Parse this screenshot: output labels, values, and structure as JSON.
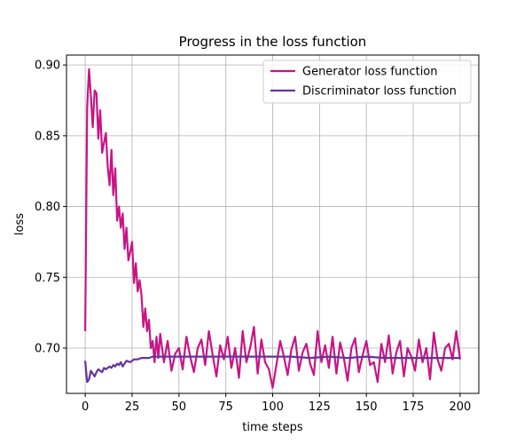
{
  "chart_data": {
    "type": "line",
    "title": "Progress in the loss function",
    "xlabel": "time steps",
    "ylabel": "loss",
    "xlim": [
      -10,
      210
    ],
    "ylim": [
      0.668,
      0.907
    ],
    "xticks": [
      0,
      25,
      50,
      75,
      100,
      125,
      150,
      175,
      200
    ],
    "yticks": [
      0.7,
      0.75,
      0.8,
      0.85,
      0.9
    ],
    "ytick_labels": [
      "0.70",
      "0.75",
      "0.80",
      "0.85",
      "0.90"
    ],
    "grid": true,
    "legend_position": "top-right",
    "series": [
      {
        "name": "Generator loss function",
        "color": "#c71585",
        "x": [
          0,
          1,
          2,
          3,
          4,
          5,
          6,
          7,
          8,
          9,
          10,
          11,
          12,
          13,
          14,
          15,
          16,
          17,
          18,
          19,
          20,
          21,
          22,
          23,
          24,
          25,
          26,
          27,
          28,
          29,
          30,
          31,
          32,
          33,
          34,
          35,
          36,
          37,
          38,
          39,
          40,
          42,
          44,
          46,
          48,
          50,
          52,
          54,
          56,
          58,
          60,
          62,
          64,
          66,
          68,
          70,
          72,
          74,
          76,
          78,
          80,
          82,
          84,
          86,
          88,
          90,
          92,
          94,
          96,
          98,
          100,
          102,
          104,
          106,
          108,
          110,
          112,
          114,
          116,
          118,
          120,
          122,
          124,
          126,
          128,
          130,
          132,
          134,
          136,
          138,
          140,
          142,
          144,
          146,
          148,
          150,
          152,
          154,
          156,
          158,
          160,
          162,
          164,
          166,
          168,
          170,
          172,
          174,
          176,
          178,
          180,
          182,
          184,
          186,
          188,
          190,
          192,
          194,
          196,
          198,
          200
        ],
        "values": [
          0.712,
          0.87,
          0.897,
          0.878,
          0.856,
          0.882,
          0.88,
          0.848,
          0.868,
          0.838,
          0.845,
          0.852,
          0.828,
          0.815,
          0.84,
          0.808,
          0.827,
          0.79,
          0.8,
          0.785,
          0.795,
          0.77,
          0.785,
          0.762,
          0.768,
          0.775,
          0.746,
          0.76,
          0.74,
          0.748,
          0.738,
          0.715,
          0.728,
          0.712,
          0.72,
          0.7,
          0.705,
          0.69,
          0.708,
          0.693,
          0.71,
          0.69,
          0.705,
          0.684,
          0.696,
          0.7,
          0.685,
          0.708,
          0.694,
          0.683,
          0.7,
          0.706,
          0.688,
          0.712,
          0.695,
          0.68,
          0.702,
          0.692,
          0.708,
          0.686,
          0.7,
          0.679,
          0.712,
          0.69,
          0.7,
          0.715,
          0.682,
          0.706,
          0.69,
          0.685,
          0.672,
          0.688,
          0.705,
          0.694,
          0.681,
          0.699,
          0.708,
          0.684,
          0.697,
          0.703,
          0.689,
          0.681,
          0.712,
          0.69,
          0.702,
          0.686,
          0.708,
          0.682,
          0.704,
          0.693,
          0.677,
          0.7,
          0.707,
          0.683,
          0.695,
          0.705,
          0.688,
          0.69,
          0.676,
          0.703,
          0.69,
          0.709,
          0.682,
          0.697,
          0.705,
          0.68,
          0.7,
          0.694,
          0.684,
          0.706,
          0.69,
          0.7,
          0.678,
          0.711,
          0.692,
          0.684,
          0.7,
          0.703,
          0.692,
          0.712,
          0.692
        ]
      },
      {
        "name": "Discriminator loss function",
        "color": "#663399",
        "x": [
          0,
          1,
          2,
          3,
          4,
          5,
          6,
          7,
          8,
          9,
          10,
          11,
          12,
          13,
          14,
          15,
          16,
          17,
          18,
          19,
          20,
          22,
          24,
          26,
          28,
          30,
          32,
          34,
          36,
          40,
          50,
          60,
          70,
          80,
          90,
          100,
          110,
          120,
          130,
          140,
          150,
          160,
          170,
          180,
          190,
          200
        ],
        "values": [
          0.691,
          0.676,
          0.678,
          0.684,
          0.682,
          0.68,
          0.683,
          0.685,
          0.684,
          0.683,
          0.686,
          0.685,
          0.686,
          0.687,
          0.686,
          0.688,
          0.687,
          0.689,
          0.688,
          0.69,
          0.687,
          0.691,
          0.69,
          0.692,
          0.692,
          0.693,
          0.693,
          0.693,
          0.694,
          0.694,
          0.694,
          0.694,
          0.694,
          0.694,
          0.694,
          0.694,
          0.694,
          0.693,
          0.694,
          0.693,
          0.694,
          0.693,
          0.693,
          0.693,
          0.693,
          0.693
        ]
      }
    ]
  }
}
